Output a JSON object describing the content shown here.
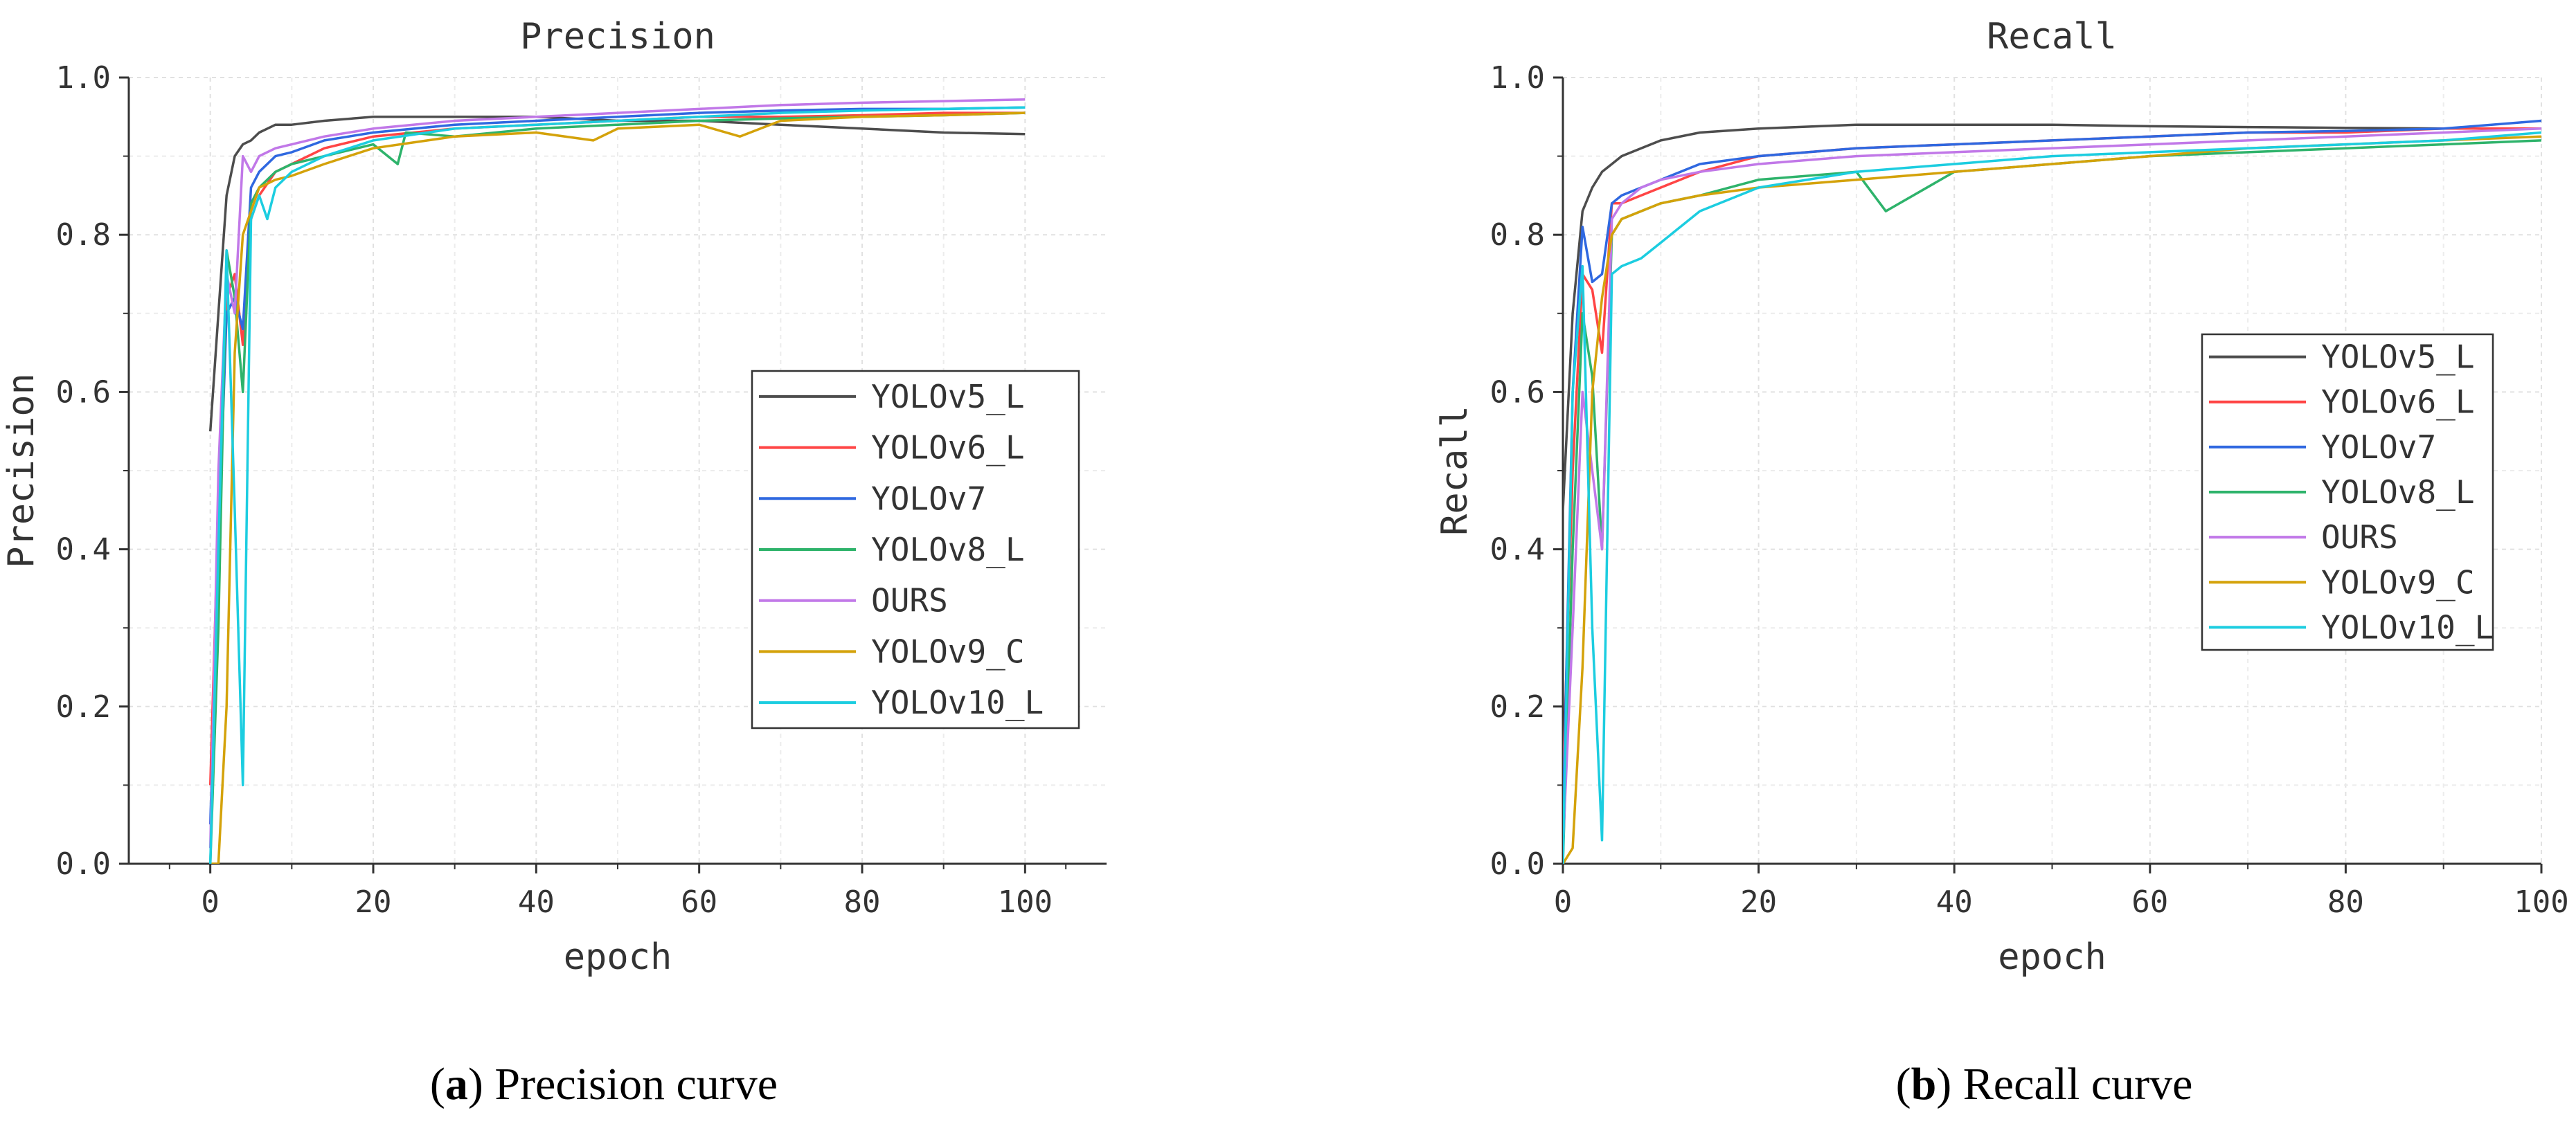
{
  "figure": {
    "panels": [
      {
        "letter": "a",
        "caption": " Precision curve"
      },
      {
        "letter": "b",
        "caption": " Recall curve"
      }
    ]
  },
  "chart_data": [
    {
      "type": "line",
      "title": "Precision",
      "xlabel": "epoch",
      "ylabel": "Precision",
      "xlim": [
        -10,
        110
      ],
      "ylim": [
        0,
        1
      ],
      "xticks": [
        0,
        20,
        40,
        60,
        80,
        100
      ],
      "yticks": [
        0.0,
        0.2,
        0.4,
        0.6,
        0.8,
        1.0
      ],
      "tick_labels_x": [
        "0",
        "20",
        "40",
        "60",
        "80",
        "100"
      ],
      "tick_labels_y": [
        "0.0",
        "0.2",
        "0.4",
        "0.6",
        "0.8",
        "1.0"
      ],
      "grid": true,
      "legend_position": "center-right",
      "series": [
        {
          "name": "YOLOv5_L",
          "color": "#4d4d4d",
          "x": [
            0,
            1,
            2,
            3,
            4,
            5,
            6,
            8,
            10,
            14,
            20,
            30,
            40,
            50,
            60,
            70,
            80,
            90,
            100
          ],
          "y": [
            0.55,
            0.7,
            0.85,
            0.9,
            0.915,
            0.92,
            0.93,
            0.94,
            0.94,
            0.945,
            0.95,
            0.95,
            0.95,
            0.945,
            0.945,
            0.94,
            0.935,
            0.93,
            0.928
          ]
        },
        {
          "name": "YOLOv6_L",
          "color": "#ff4545",
          "x": [
            0,
            1,
            2,
            3,
            4,
            5,
            6,
            8,
            10,
            14,
            20,
            30,
            40,
            50,
            60,
            70,
            80,
            90,
            100
          ],
          "y": [
            0.1,
            0.45,
            0.72,
            0.75,
            0.66,
            0.82,
            0.85,
            0.88,
            0.89,
            0.91,
            0.925,
            0.935,
            0.94,
            0.945,
            0.95,
            0.95,
            0.952,
            0.955,
            0.955
          ]
        },
        {
          "name": "YOLOv7",
          "color": "#2f68e0",
          "x": [
            0,
            1,
            2,
            3,
            4,
            5,
            6,
            8,
            10,
            14,
            20,
            30,
            40,
            50,
            60,
            70,
            80,
            90,
            100
          ],
          "y": [
            0.05,
            0.4,
            0.7,
            0.72,
            0.68,
            0.86,
            0.88,
            0.9,
            0.905,
            0.92,
            0.93,
            0.94,
            0.945,
            0.95,
            0.955,
            0.958,
            0.96,
            0.96,
            0.962
          ]
        },
        {
          "name": "YOLOv8_L",
          "color": "#2eb36b",
          "x": [
            0,
            1,
            2,
            3,
            4,
            5,
            6,
            8,
            10,
            14,
            20,
            23,
            24,
            30,
            40,
            50,
            60,
            70,
            80,
            90,
            100
          ],
          "y": [
            0.0,
            0.3,
            0.78,
            0.72,
            0.6,
            0.84,
            0.86,
            0.88,
            0.89,
            0.9,
            0.915,
            0.89,
            0.93,
            0.925,
            0.935,
            0.94,
            0.945,
            0.948,
            0.95,
            0.952,
            0.955
          ]
        },
        {
          "name": "OURS",
          "color": "#c178e8",
          "x": [
            0,
            1,
            2,
            3,
            4,
            5,
            6,
            8,
            10,
            14,
            20,
            30,
            40,
            50,
            60,
            70,
            80,
            90,
            100
          ],
          "y": [
            0.02,
            0.5,
            0.75,
            0.7,
            0.9,
            0.88,
            0.9,
            0.91,
            0.915,
            0.925,
            0.935,
            0.945,
            0.95,
            0.955,
            0.96,
            0.965,
            0.968,
            0.97,
            0.972
          ]
        },
        {
          "name": "YOLOv9_C",
          "color": "#d4a20a",
          "x": [
            0,
            1,
            2,
            3,
            4,
            5,
            6,
            8,
            10,
            14,
            20,
            30,
            40,
            47,
            50,
            60,
            65,
            70,
            80,
            90,
            100
          ],
          "y": [
            0.0,
            0.0,
            0.2,
            0.65,
            0.8,
            0.83,
            0.86,
            0.87,
            0.875,
            0.89,
            0.91,
            0.925,
            0.93,
            0.92,
            0.935,
            0.94,
            0.925,
            0.945,
            0.95,
            0.952,
            0.955
          ]
        },
        {
          "name": "YOLOv10_L",
          "color": "#1ccde0",
          "x": [
            0,
            1,
            2,
            3,
            4,
            5,
            6,
            7,
            8,
            10,
            14,
            20,
            30,
            40,
            50,
            60,
            70,
            80,
            90,
            100
          ],
          "y": [
            0.0,
            0.4,
            0.78,
            0.45,
            0.1,
            0.82,
            0.85,
            0.82,
            0.86,
            0.88,
            0.9,
            0.92,
            0.935,
            0.94,
            0.945,
            0.95,
            0.955,
            0.958,
            0.96,
            0.962
          ]
        }
      ]
    },
    {
      "type": "line",
      "title": "Recall",
      "xlabel": "epoch",
      "ylabel": "Recall",
      "xlim": [
        0,
        100
      ],
      "ylim": [
        0,
        1
      ],
      "xticks": [
        0,
        20,
        40,
        60,
        80,
        100
      ],
      "yticks": [
        0.0,
        0.2,
        0.4,
        0.6,
        0.8,
        1.0
      ],
      "tick_labels_x": [
        "0",
        "20",
        "40",
        "60",
        "80",
        "100"
      ],
      "tick_labels_y": [
        "0.0",
        "0.2",
        "0.4",
        "0.6",
        "0.8",
        "1.0"
      ],
      "grid": true,
      "legend_position": "center-right",
      "series": [
        {
          "name": "YOLOv5_L",
          "color": "#4d4d4d",
          "x": [
            0,
            1,
            2,
            3,
            4,
            5,
            6,
            8,
            10,
            14,
            20,
            30,
            40,
            50,
            60,
            70,
            80,
            90,
            100
          ],
          "y": [
            0.45,
            0.7,
            0.83,
            0.86,
            0.88,
            0.89,
            0.9,
            0.91,
            0.92,
            0.93,
            0.935,
            0.94,
            0.94,
            0.94,
            0.938,
            0.937,
            0.936,
            0.935,
            0.935
          ]
        },
        {
          "name": "YOLOv6_L",
          "color": "#ff4545",
          "x": [
            0,
            1,
            2,
            3,
            4,
            5,
            6,
            8,
            10,
            14,
            20,
            30,
            40,
            50,
            60,
            70,
            80,
            90,
            100
          ],
          "y": [
            0.1,
            0.5,
            0.75,
            0.73,
            0.65,
            0.84,
            0.84,
            0.85,
            0.86,
            0.88,
            0.9,
            0.91,
            0.915,
            0.92,
            0.925,
            0.93,
            0.93,
            0.935,
            0.935
          ]
        },
        {
          "name": "YOLOv7",
          "color": "#2f68e0",
          "x": [
            0,
            1,
            2,
            3,
            4,
            5,
            6,
            8,
            10,
            14,
            20,
            30,
            40,
            50,
            60,
            70,
            80,
            90,
            100
          ],
          "y": [
            0.05,
            0.6,
            0.81,
            0.74,
            0.75,
            0.84,
            0.85,
            0.86,
            0.87,
            0.89,
            0.9,
            0.91,
            0.915,
            0.92,
            0.925,
            0.93,
            0.932,
            0.935,
            0.945
          ]
        },
        {
          "name": "YOLOv8_L",
          "color": "#2eb36b",
          "x": [
            0,
            1,
            2,
            3,
            4,
            5,
            6,
            8,
            10,
            14,
            20,
            30,
            33,
            40,
            50,
            60,
            70,
            80,
            90,
            100
          ],
          "y": [
            0.0,
            0.4,
            0.7,
            0.62,
            0.4,
            0.8,
            0.82,
            0.83,
            0.84,
            0.85,
            0.87,
            0.88,
            0.83,
            0.88,
            0.89,
            0.9,
            0.905,
            0.91,
            0.915,
            0.92
          ]
        },
        {
          "name": "OURS",
          "color": "#c178e8",
          "x": [
            0,
            1,
            2,
            3,
            4,
            5,
            6,
            8,
            10,
            14,
            20,
            30,
            40,
            50,
            60,
            70,
            80,
            90,
            100
          ],
          "y": [
            0.02,
            0.3,
            0.6,
            0.5,
            0.4,
            0.82,
            0.84,
            0.86,
            0.87,
            0.88,
            0.89,
            0.9,
            0.905,
            0.91,
            0.915,
            0.92,
            0.925,
            0.93,
            0.935
          ]
        },
        {
          "name": "YOLOv9_C",
          "color": "#d4a20a",
          "x": [
            0,
            1,
            2,
            3,
            4,
            5,
            6,
            8,
            10,
            14,
            20,
            30,
            40,
            50,
            60,
            70,
            80,
            90,
            100
          ],
          "y": [
            0.0,
            0.02,
            0.25,
            0.6,
            0.72,
            0.8,
            0.82,
            0.83,
            0.84,
            0.85,
            0.86,
            0.87,
            0.88,
            0.89,
            0.9,
            0.91,
            0.915,
            0.92,
            0.925
          ]
        },
        {
          "name": "YOLOv10_L",
          "color": "#1ccde0",
          "x": [
            0,
            1,
            2,
            3,
            4,
            5,
            6,
            8,
            10,
            14,
            20,
            30,
            40,
            50,
            60,
            70,
            80,
            90,
            100
          ],
          "y": [
            0.0,
            0.6,
            0.76,
            0.3,
            0.03,
            0.75,
            0.76,
            0.77,
            0.79,
            0.83,
            0.86,
            0.88,
            0.89,
            0.9,
            0.905,
            0.91,
            0.915,
            0.92,
            0.93
          ]
        }
      ]
    }
  ]
}
